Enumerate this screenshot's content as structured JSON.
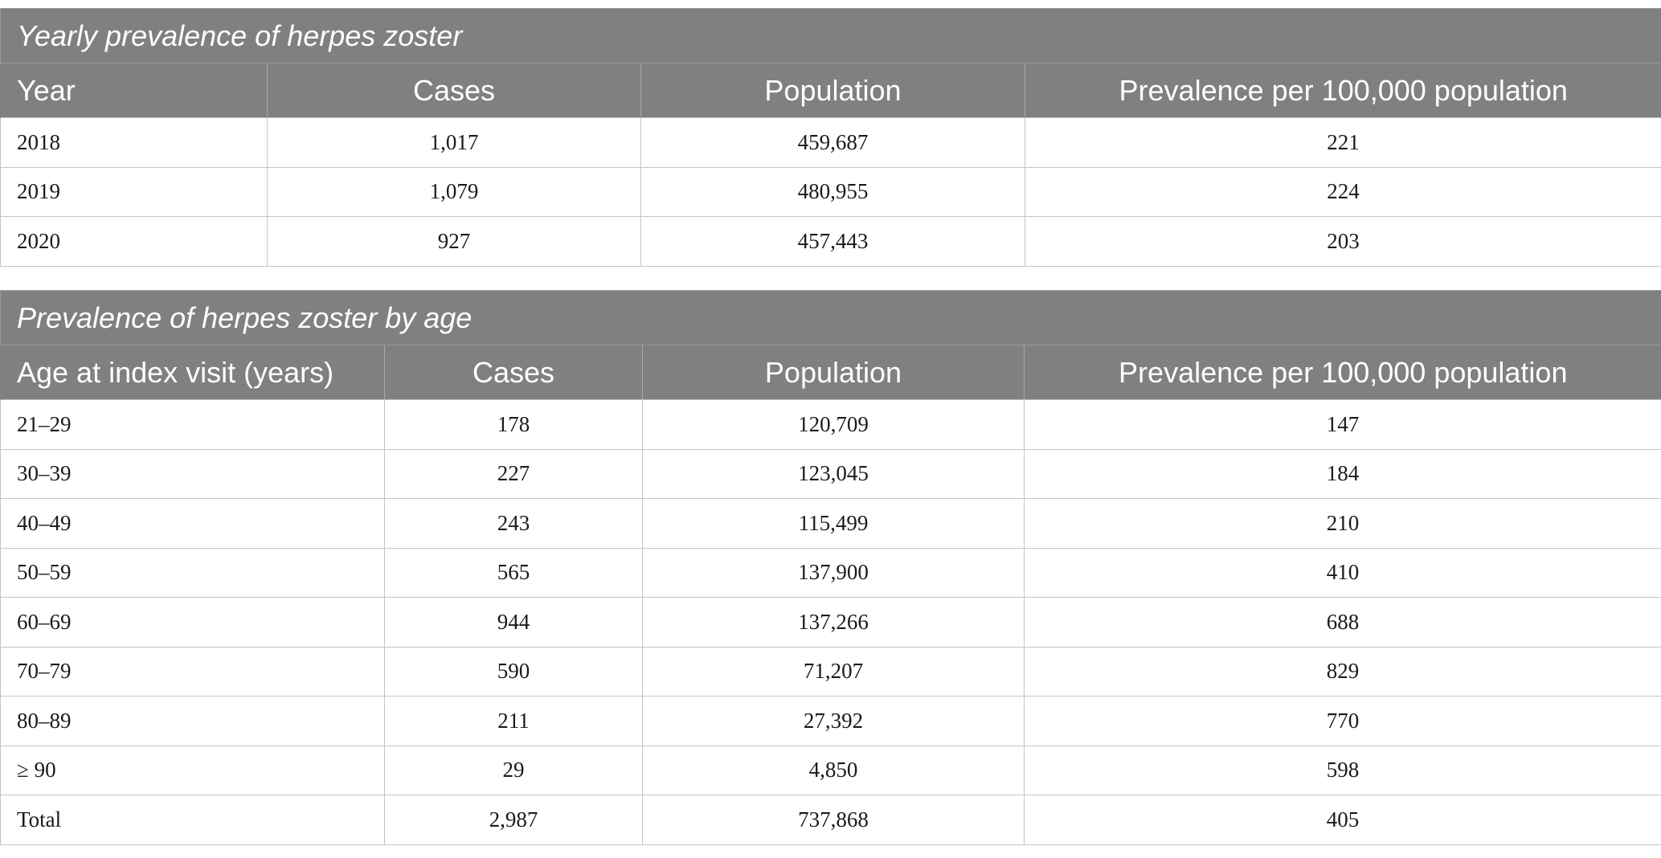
{
  "table1": {
    "caption": "Yearly prevalence of herpes zoster",
    "columns": [
      "Year",
      "Cases",
      "Population",
      "Prevalence per 100,000 population"
    ],
    "rows": [
      [
        "2018",
        "1,017",
        "459,687",
        "221"
      ],
      [
        "2019",
        "1,079",
        "480,955",
        "224"
      ],
      [
        "2020",
        "927",
        "457,443",
        "203"
      ]
    ]
  },
  "table2": {
    "caption": "Prevalence of herpes zoster by age",
    "columns": [
      "Age at index visit (years)",
      "Cases",
      "Population",
      "Prevalence per 100,000 population"
    ],
    "rows": [
      [
        "21–29",
        "178",
        "120,709",
        "147"
      ],
      [
        "30–39",
        "227",
        "123,045",
        "184"
      ],
      [
        "40–49",
        "243",
        "115,499",
        "210"
      ],
      [
        "50–59",
        "565",
        "137,900",
        "410"
      ],
      [
        "60–69",
        "944",
        "137,266",
        "688"
      ],
      [
        "70–79",
        "590",
        "71,207",
        "829"
      ],
      [
        "80–89",
        "211",
        "27,392",
        "770"
      ],
      [
        "≥ 90",
        "29",
        "4,850",
        "598"
      ],
      [
        "Total",
        "2,987",
        "737,868",
        "405"
      ]
    ]
  }
}
